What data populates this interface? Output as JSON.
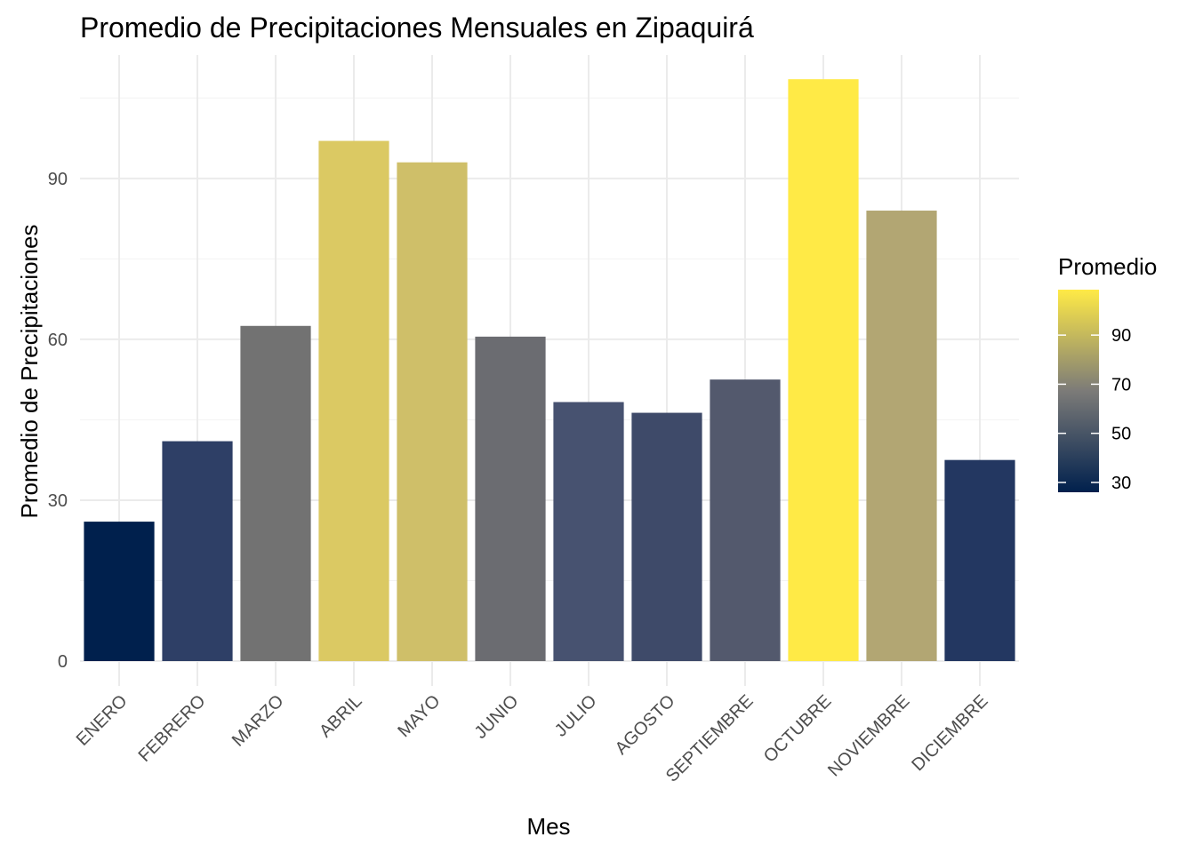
{
  "chart_data": {
    "type": "bar",
    "title": "Promedio de Precipitaciones Mensuales en Zipaquirá",
    "xlabel": "Mes",
    "ylabel": "Promedio de Precipitaciones",
    "categories": [
      "ENERO",
      "FEBRERO",
      "MARZO",
      "ABRIL",
      "MAYO",
      "JUNIO",
      "JULIO",
      "AGOSTO",
      "SEPTIEMBRE",
      "OCTUBRE",
      "NOVIEMBRE",
      "DICIEMBRE"
    ],
    "values": [
      26,
      41,
      62.5,
      97,
      93,
      60.5,
      48.3,
      46.3,
      52.5,
      108.5,
      84,
      37.5
    ],
    "ylim": [
      0,
      113
    ],
    "yticks": [
      0,
      30,
      60,
      90
    ],
    "grid": true,
    "legend": {
      "title": "Promedio",
      "placement": "right",
      "ticks": [
        30,
        50,
        70,
        90
      ],
      "range": [
        26,
        108.5
      ],
      "colors": [
        "#00204d",
        "#7c7b78",
        "#ffea46"
      ]
    },
    "bar_colors": [
      "#00204d",
      "#2e3f66",
      "#727272",
      "#dbc963",
      "#cfbf69",
      "#6b6c71",
      "#475270",
      "#3e4a69",
      "#53596d",
      "#ffea46",
      "#b2a673",
      "#233761"
    ]
  }
}
